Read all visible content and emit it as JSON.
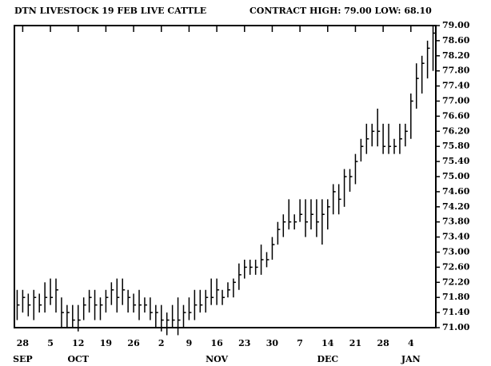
{
  "chart_data": {
    "type": "ohlc",
    "title": "DTN LIVESTOCK 19 FEB LIVE CATTLE",
    "subtitle": "CONTRACT HIGH: 79.00  LOW: 68.10",
    "color": "#000000",
    "categories": [
      null,
      "28",
      null,
      null,
      null,
      null,
      "5",
      null,
      null,
      null,
      null,
      "12",
      null,
      null,
      null,
      null,
      "19",
      null,
      null,
      null,
      null,
      "26",
      null,
      null,
      null,
      null,
      "2",
      null,
      null,
      null,
      null,
      "9",
      null,
      null,
      null,
      null,
      "16",
      null,
      null,
      null,
      null,
      "23",
      null,
      null,
      null,
      null,
      "30",
      null,
      null,
      null,
      null,
      "7",
      null,
      null,
      null,
      null,
      "14",
      null,
      null,
      null,
      null,
      "21",
      null,
      null,
      null,
      null,
      "28",
      null,
      null,
      null,
      null,
      "4",
      null,
      null,
      null,
      null
    ],
    "category_months": [
      null,
      "SEP",
      null,
      null,
      null,
      null,
      null,
      null,
      null,
      null,
      null,
      "OCT",
      null,
      null,
      null,
      null,
      null,
      null,
      null,
      null,
      null,
      null,
      null,
      null,
      null,
      null,
      null,
      null,
      null,
      null,
      null,
      null,
      null,
      null,
      null,
      null,
      "NOV",
      null,
      null,
      null,
      null,
      null,
      null,
      null,
      null,
      null,
      null,
      null,
      null,
      null,
      null,
      null,
      null,
      null,
      null,
      null,
      "DEC",
      null,
      null,
      null,
      null,
      null,
      null,
      null,
      null,
      null,
      null,
      null,
      null,
      null,
      null,
      "JAN",
      null,
      null,
      null,
      null
    ],
    "series": [
      {
        "high": [
          72.0,
          72.0,
          71.9,
          72.0,
          71.9,
          72.2,
          72.3,
          72.3,
          71.8,
          71.6,
          71.6,
          71.6,
          71.8,
          72.0,
          72.0,
          71.8,
          72.0,
          72.2,
          72.3,
          72.3,
          72.0,
          71.9,
          72.0,
          71.8,
          71.8,
          71.6,
          71.6,
          71.4,
          71.6,
          71.8,
          71.6,
          71.8,
          72.0,
          72.0,
          72.0,
          72.3,
          72.3,
          72.0,
          72.2,
          72.3,
          72.7,
          72.8,
          72.8,
          72.8,
          73.2,
          73.0,
          73.4,
          73.8,
          74.0,
          74.4,
          74.0,
          74.4,
          74.4,
          74.4,
          74.4,
          74.4,
          74.4,
          74.8,
          74.8,
          75.2,
          75.2,
          75.6,
          76.0,
          76.4,
          76.4,
          76.8,
          76.4,
          76.4,
          76.0,
          76.4,
          76.4,
          77.2,
          78.0,
          78.2,
          78.6,
          79.0
        ],
        "low": [
          71.2,
          71.4,
          71.3,
          71.2,
          71.4,
          71.4,
          71.6,
          71.4,
          71.0,
          71.0,
          71.0,
          70.9,
          71.2,
          71.4,
          71.2,
          71.2,
          71.4,
          71.6,
          71.4,
          71.6,
          71.4,
          71.4,
          71.2,
          71.4,
          71.2,
          71.0,
          70.9,
          70.8,
          71.0,
          70.8,
          71.0,
          71.2,
          71.2,
          71.4,
          71.4,
          71.6,
          71.6,
          71.6,
          71.8,
          71.8,
          72.0,
          72.3,
          72.4,
          72.4,
          72.4,
          72.6,
          72.8,
          73.2,
          73.4,
          73.6,
          73.6,
          73.8,
          73.4,
          73.6,
          73.4,
          73.2,
          73.6,
          74.0,
          74.0,
          74.2,
          74.6,
          74.8,
          75.4,
          75.6,
          75.8,
          75.8,
          75.6,
          75.6,
          75.6,
          75.6,
          75.8,
          76.0,
          76.8,
          77.2,
          77.6,
          77.8
        ],
        "close": [
          71.6,
          71.8,
          71.6,
          71.8,
          71.6,
          71.8,
          71.8,
          72.0,
          71.4,
          71.4,
          71.2,
          71.2,
          71.6,
          71.8,
          71.6,
          71.6,
          71.8,
          72.0,
          71.8,
          72.0,
          71.8,
          71.6,
          71.6,
          71.6,
          71.4,
          71.4,
          71.2,
          71.2,
          71.2,
          71.2,
          71.4,
          71.4,
          71.6,
          71.6,
          71.8,
          71.8,
          72.0,
          71.8,
          72.0,
          72.2,
          72.4,
          72.6,
          72.6,
          72.6,
          72.8,
          72.8,
          73.2,
          73.6,
          73.8,
          73.8,
          73.8,
          74.0,
          73.8,
          74.0,
          73.8,
          74.0,
          74.2,
          74.6,
          74.4,
          75.0,
          75.0,
          75.4,
          75.8,
          76.0,
          76.2,
          76.2,
          75.8,
          75.8,
          75.8,
          76.0,
          76.2,
          77.0,
          77.6,
          78.0,
          78.4,
          78.8
        ]
      }
    ],
    "ylim": [
      71,
      79
    ],
    "yticks": [
      {
        "value": 71.0,
        "label": "71.00"
      },
      {
        "value": 71.4,
        "label": "71.40"
      },
      {
        "value": 71.8,
        "label": "71.80"
      },
      {
        "value": 72.2,
        "label": "72.20"
      },
      {
        "value": 72.6,
        "label": "72.60"
      },
      {
        "value": 73.0,
        "label": "73.00"
      },
      {
        "value": 73.4,
        "label": "73.40"
      },
      {
        "value": 73.8,
        "label": "73.80"
      },
      {
        "value": 74.2,
        "label": "74.20"
      },
      {
        "value": 74.6,
        "label": "74.60"
      },
      {
        "value": 75.0,
        "label": "75.00"
      },
      {
        "value": 75.4,
        "label": "75.40"
      },
      {
        "value": 75.8,
        "label": "75.80"
      },
      {
        "value": 76.2,
        "label": "76.20"
      },
      {
        "value": 76.6,
        "label": "76.60"
      },
      {
        "value": 77.0,
        "label": "77.00"
      },
      {
        "value": 77.4,
        "label": "77.40"
      },
      {
        "value": 77.8,
        "label": "77.80"
      },
      {
        "value": 78.2,
        "label": "78.20"
      },
      {
        "value": 78.6,
        "label": "78.60"
      },
      {
        "value": 79.0,
        "label": "79.00"
      }
    ],
    "grid": false
  }
}
